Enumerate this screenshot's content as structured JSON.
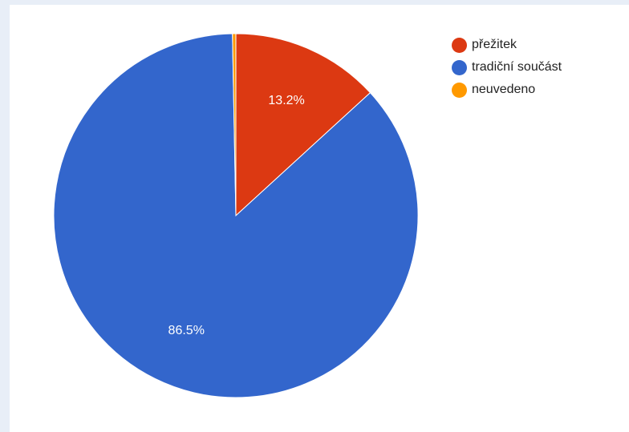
{
  "chart_data": {
    "type": "pie",
    "categories": [
      "přežitek",
      "tradiční součást",
      "neuvedeno"
    ],
    "values": [
      13.2,
      86.5,
      0.3
    ],
    "colors": [
      "#dc3912",
      "#3366cc",
      "#ff9900"
    ],
    "data_labels": [
      "13.2%",
      "86.5%",
      ""
    ],
    "start_angle_deg": 0,
    "direction": "clockwise",
    "legend_position": "right"
  }
}
